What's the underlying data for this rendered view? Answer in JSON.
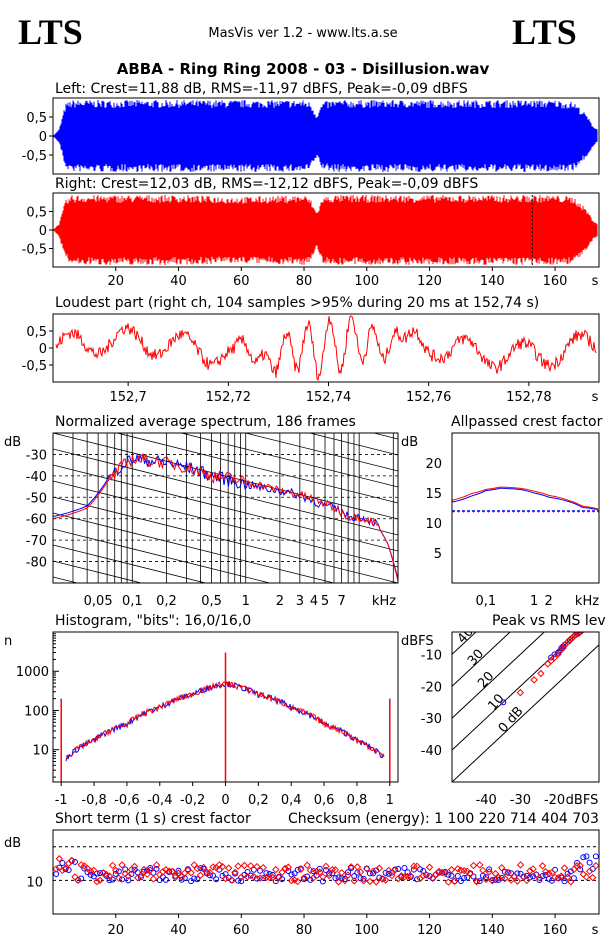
{
  "header": {
    "logo_left": "LTS",
    "logo_right": "LTS",
    "app": "MasVis ver 1.2 - www.lts.a.se",
    "file_title": "ABBA - Ring Ring 2008 - 03 - Disillusion.wav"
  },
  "colors": {
    "left": "#0000ff",
    "right": "#ff0000",
    "frame": "#000000"
  },
  "chart_data": [
    {
      "id": "left-waveform",
      "type": "area",
      "title": "Left: Crest=11,88 dB, RMS=-11,97 dBFS, Peak=-0,09 dBFS",
      "series": [
        {
          "name": "Left",
          "color": "#0000ff"
        }
      ],
      "ylim": [
        -1,
        1
      ],
      "yticks": [
        "0,5",
        "0",
        "-0,5"
      ],
      "xlim": [
        0,
        174
      ],
      "envelope": {
        "x": [
          0,
          2,
          4,
          6,
          10,
          20,
          40,
          60,
          80,
          82,
          84,
          86,
          90,
          100,
          120,
          140,
          150,
          160,
          166,
          170,
          172,
          174
        ],
        "amp": [
          0,
          0.2,
          0.9,
          1,
          1,
          1,
          1,
          1,
          1,
          0.95,
          0.6,
          0.95,
          1,
          1,
          1,
          1,
          1,
          1,
          0.95,
          0.6,
          0.3,
          0.15
        ]
      }
    },
    {
      "id": "right-waveform",
      "type": "area",
      "title": "Right: Crest=12,03 dB, RMS=-12,12 dBFS, Peak=-0,09 dBFS",
      "series": [
        {
          "name": "Right",
          "color": "#ff0000"
        }
      ],
      "ylim": [
        -1,
        1
      ],
      "yticks": [
        "0,5",
        "0",
        "-0,5"
      ],
      "xlim": [
        0,
        174
      ],
      "xticks": [
        "20",
        "40",
        "60",
        "80",
        "100",
        "120",
        "140",
        "160"
      ],
      "xtick_values": [
        20,
        40,
        60,
        80,
        100,
        120,
        140,
        160
      ],
      "xunit": "s",
      "marker_x": 152.74,
      "envelope": {
        "x": [
          0,
          2,
          4,
          6,
          10,
          20,
          40,
          60,
          80,
          82,
          84,
          86,
          90,
          100,
          120,
          140,
          150,
          160,
          166,
          170,
          172,
          174
        ],
        "amp": [
          0,
          0.2,
          0.85,
          1,
          1,
          1,
          1,
          0.95,
          1,
          0.9,
          0.5,
          0.95,
          1,
          1,
          1,
          1,
          1,
          1,
          0.95,
          0.6,
          0.3,
          0.15
        ]
      }
    },
    {
      "id": "loudest-part",
      "type": "line",
      "title": "Loudest part (right ch, 104 samples >95% during 20 ms at 152,74 s)",
      "series": [
        {
          "name": "Right",
          "color": "#ff0000"
        }
      ],
      "ylim": [
        -1,
        1
      ],
      "yticks": [
        "0,5",
        "0",
        "-0,5"
      ],
      "xlim": [
        152.685,
        152.794
      ],
      "xticks": [
        "152,7",
        "152,72",
        "152,74",
        "152,76",
        "152,78"
      ],
      "xtick_values": [
        152.7,
        152.72,
        152.74,
        152.76,
        152.78
      ],
      "xunit": "s"
    },
    {
      "id": "spectrum",
      "type": "line",
      "title": "Normalized average spectrum, 186 frames",
      "ylabel": "dB",
      "xunit": "kHz",
      "yticks": [
        "-30",
        "-40",
        "-50",
        "-60",
        "-70",
        "-80"
      ],
      "ytick_values": [
        -30,
        -40,
        -50,
        -60,
        -70,
        -80
      ],
      "ylim": [
        -90,
        -20
      ],
      "xticks": [
        "0,05",
        "0,1",
        "0,2",
        "0,5",
        "1",
        "2",
        "3",
        "4",
        "5",
        "7"
      ],
      "xtick_values": [
        0.05,
        0.1,
        0.2,
        0.5,
        1,
        2,
        3,
        4,
        5,
        7
      ],
      "xlim": [
        0.02,
        22
      ],
      "series": [
        {
          "name": "Left",
          "color": "#0000ff",
          "x": [
            0.02,
            0.04,
            0.06,
            0.08,
            0.1,
            0.15,
            0.2,
            0.3,
            0.5,
            0.7,
            1,
            1.5,
            2,
            3,
            4,
            5,
            6,
            7,
            8,
            10,
            14,
            18,
            22
          ],
          "y": [
            -59,
            -54,
            -42,
            -35,
            -32,
            -33,
            -34,
            -36,
            -40,
            -42,
            -44,
            -46,
            -47,
            -49,
            -52,
            -54,
            -55,
            -57,
            -59,
            -59,
            -62,
            -72,
            -88
          ]
        },
        {
          "name": "Right",
          "color": "#ff0000",
          "x": [
            0.02,
            0.04,
            0.06,
            0.08,
            0.1,
            0.15,
            0.2,
            0.3,
            0.5,
            0.7,
            1,
            1.5,
            2,
            3,
            4,
            5,
            6,
            7,
            8,
            10,
            14,
            18,
            22
          ],
          "y": [
            -60,
            -55,
            -43,
            -36,
            -32,
            -33,
            -34,
            -36,
            -40,
            -41,
            -43,
            -45,
            -47,
            -49,
            -51,
            -53,
            -55,
            -57,
            -59,
            -59,
            -62,
            -72,
            -89
          ]
        }
      ]
    },
    {
      "id": "allpassed-crest",
      "type": "line",
      "title": "Allpassed crest factor",
      "ylabel": "dB",
      "xunit": "kHz",
      "yticks": [
        "20",
        "15",
        "10",
        "5"
      ],
      "ytick_values": [
        20,
        15,
        10,
        5
      ],
      "ylim": [
        0,
        25
      ],
      "xticks": [
        "0,1",
        "1",
        "2"
      ],
      "xtick_values": [
        0.1,
        1,
        2
      ],
      "xlim": [
        0.02,
        22
      ],
      "reference_db": 12,
      "series": [
        {
          "name": "Left",
          "color": "#0000ff",
          "x": [
            0.02,
            0.05,
            0.1,
            0.2,
            0.5,
            1,
            2,
            5,
            10,
            22
          ],
          "y": [
            13.5,
            14.5,
            15.4,
            15.8,
            15.6,
            15,
            14.3,
            13.6,
            12.6,
            12.2
          ]
        },
        {
          "name": "Right",
          "color": "#ff0000",
          "x": [
            0.02,
            0.05,
            0.1,
            0.2,
            0.5,
            1,
            2,
            5,
            10,
            22
          ],
          "y": [
            13.8,
            14.9,
            15.6,
            16,
            15.8,
            15.3,
            14.6,
            13.8,
            12.8,
            12.3
          ]
        }
      ]
    },
    {
      "id": "histogram",
      "type": "line",
      "title": "Histogram, \"bits\": 16,0/16,0",
      "ylabel": "n",
      "yscale": "log",
      "yticks": [
        "1000",
        "100",
        "10"
      ],
      "ytick_values": [
        1000,
        100,
        10
      ],
      "ylim": [
        1.5,
        10000
      ],
      "xticks": [
        "-1",
        "-0,8",
        "-0,6",
        "-0,4",
        "-0,2",
        "0",
        "0,2",
        "0,4",
        "0,6",
        "0,8",
        "1"
      ],
      "xtick_values": [
        -1,
        -0.8,
        -0.6,
        -0.4,
        -0.2,
        0,
        0.2,
        0.4,
        0.6,
        0.8,
        1
      ],
      "xlim": [
        -1.05,
        1.05
      ],
      "series": [
        {
          "name": "Left",
          "color": "#0000ff",
          "x": [
            -0.97,
            -0.8,
            -0.6,
            -0.4,
            -0.2,
            -0.02,
            0,
            0.02,
            0.2,
            0.4,
            0.6,
            0.8,
            0.97
          ],
          "y": [
            6,
            17,
            45,
            120,
            260,
            480,
            900,
            480,
            260,
            120,
            45,
            17,
            6
          ]
        },
        {
          "name": "Right",
          "color": "#ff0000",
          "x": [
            -1,
            -0.97,
            -0.8,
            -0.6,
            -0.4,
            -0.2,
            -0.02,
            0,
            0.02,
            0.2,
            0.4,
            0.6,
            0.8,
            0.97,
            1
          ],
          "y": [
            200,
            6,
            17,
            45,
            120,
            260,
            480,
            3000,
            480,
            260,
            120,
            45,
            17,
            6,
            200
          ]
        }
      ]
    },
    {
      "id": "peak-vs-rms",
      "type": "scatter",
      "title": "Peak vs RMS level",
      "ylabel": "dBFS",
      "xunit": "dBFS",
      "yticks": [
        "-10",
        "-20",
        "-30",
        "-40"
      ],
      "ytick_values": [
        -10,
        -20,
        -30,
        -40
      ],
      "ylim": [
        -50,
        -3
      ],
      "xticks": [
        "-40",
        "-30",
        "-20"
      ],
      "xtick_values": [
        -40,
        -30,
        -20
      ],
      "xlim": [
        -50,
        -7
      ],
      "diagonal_labels": [
        "40",
        "30",
        "20",
        "10",
        "0 dB"
      ],
      "diagonal_offsets": [
        40,
        30,
        20,
        10,
        0
      ],
      "series": [
        {
          "name": "Left",
          "color": "#0000ff",
          "marker": "circle",
          "x": [
            -21,
            -20,
            -19,
            -18.5,
            -18,
            -17.5,
            -17,
            -16,
            -15.5,
            -15,
            -14,
            -13.5,
            -13,
            -12.5,
            -12,
            -11.5,
            -11,
            -10.5,
            -10,
            -35
          ],
          "y": [
            -11,
            -10,
            -9.5,
            -9,
            -8,
            -7.5,
            -7,
            -6,
            -5.5,
            -5,
            -4,
            -3.5,
            -3.2,
            -3,
            -2.5,
            -2,
            -1.5,
            -1,
            -0.5,
            -25
          ]
        },
        {
          "name": "Right",
          "color": "#ff0000",
          "marker": "diamond",
          "x": [
            -30,
            -26,
            -24,
            -22,
            -21,
            -20,
            -19,
            -18,
            -17.5,
            -17,
            -16,
            -15,
            -14.5,
            -14,
            -13,
            -12.5,
            -12,
            -11.5,
            -11,
            -10.5
          ],
          "y": [
            -22,
            -18,
            -16,
            -13,
            -12,
            -11,
            -10,
            -8.5,
            -8,
            -7,
            -6,
            -5,
            -4.5,
            -4,
            -3.5,
            -3,
            -2.5,
            -2,
            -1.5,
            -1
          ]
        }
      ]
    },
    {
      "id": "short-term-crest",
      "type": "scatter",
      "title": "Short term (1 s) crest factor",
      "ylabel": "dB",
      "yticks": [
        "10"
      ],
      "ytick_values": [
        10
      ],
      "ylim": [
        0,
        25
      ],
      "xticks": [
        "20",
        "40",
        "60",
        "80",
        "100",
        "120",
        "140",
        "160"
      ],
      "xtick_values": [
        20,
        40,
        60,
        80,
        100,
        120,
        140,
        160
      ],
      "xlim": [
        0,
        174
      ],
      "xunit": "s",
      "reference_lines_db": [
        10,
        20
      ],
      "series": [
        {
          "name": "Left",
          "color": "#0000ff",
          "marker": "circle",
          "mean": 11.5,
          "spread": 2.5,
          "x_count": 174
        },
        {
          "name": "Right",
          "color": "#ff0000",
          "marker": "diamond",
          "mean": 11.8,
          "spread": 3.2,
          "x_count": 174
        }
      ]
    }
  ],
  "checksum": "Checksum (energy):  1 100 220 714 404 703"
}
